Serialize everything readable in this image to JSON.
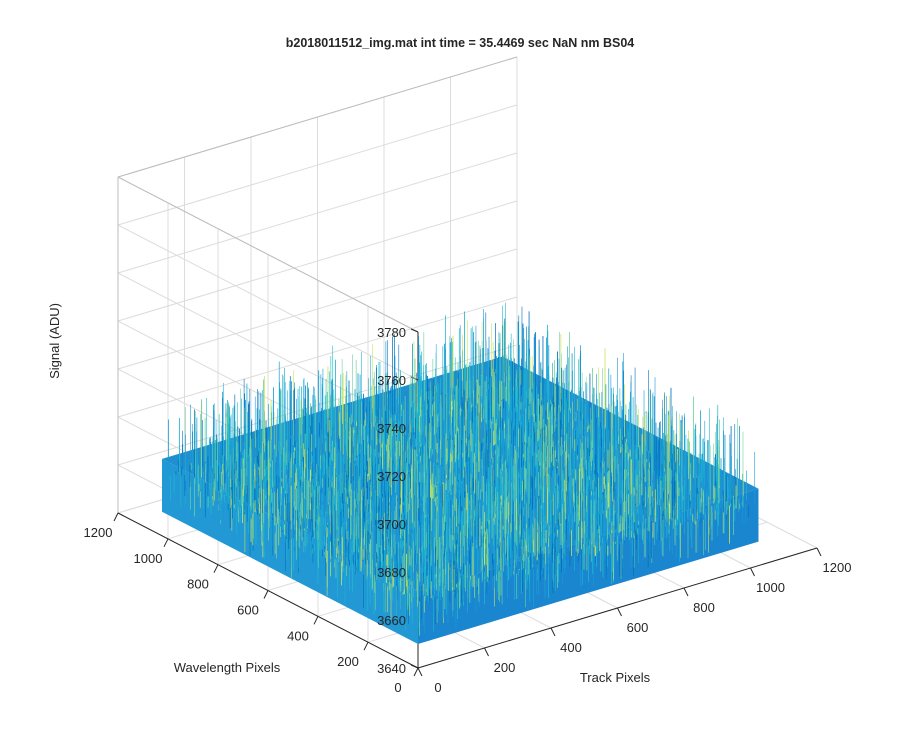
{
  "chart_data": {
    "type": "surface",
    "title": "b2018011512_img.mat int time = 35.4469 sec  NaN nm BS04",
    "xlabel": "Track Pixels",
    "ylabel": "Wavelength Pixels",
    "zlabel": "Signal (ADU)",
    "xlim": [
      0,
      1200
    ],
    "ylim": [
      0,
      1200
    ],
    "zlim": [
      3640,
      3780
    ],
    "x_ticks": [
      "0",
      "200",
      "400",
      "600",
      "800",
      "1000",
      "1200"
    ],
    "y_ticks": [
      "0",
      "200",
      "400",
      "600",
      "800",
      "1000",
      "1200"
    ],
    "z_ticks": [
      "3640",
      "3660",
      "3680",
      "3700",
      "3720",
      "3740",
      "3760",
      "3780"
    ],
    "surface": {
      "x_range": [
        0,
        1024
      ],
      "y_range": [
        0,
        1024
      ],
      "mean_signal": 3672,
      "noise_range": [
        3650,
        3700
      ]
    },
    "grid": true,
    "colormap": [
      "#0072bd",
      "#1a9bd7",
      "#20b6cf",
      "#6fd0a0",
      "#c9e460"
    ]
  }
}
